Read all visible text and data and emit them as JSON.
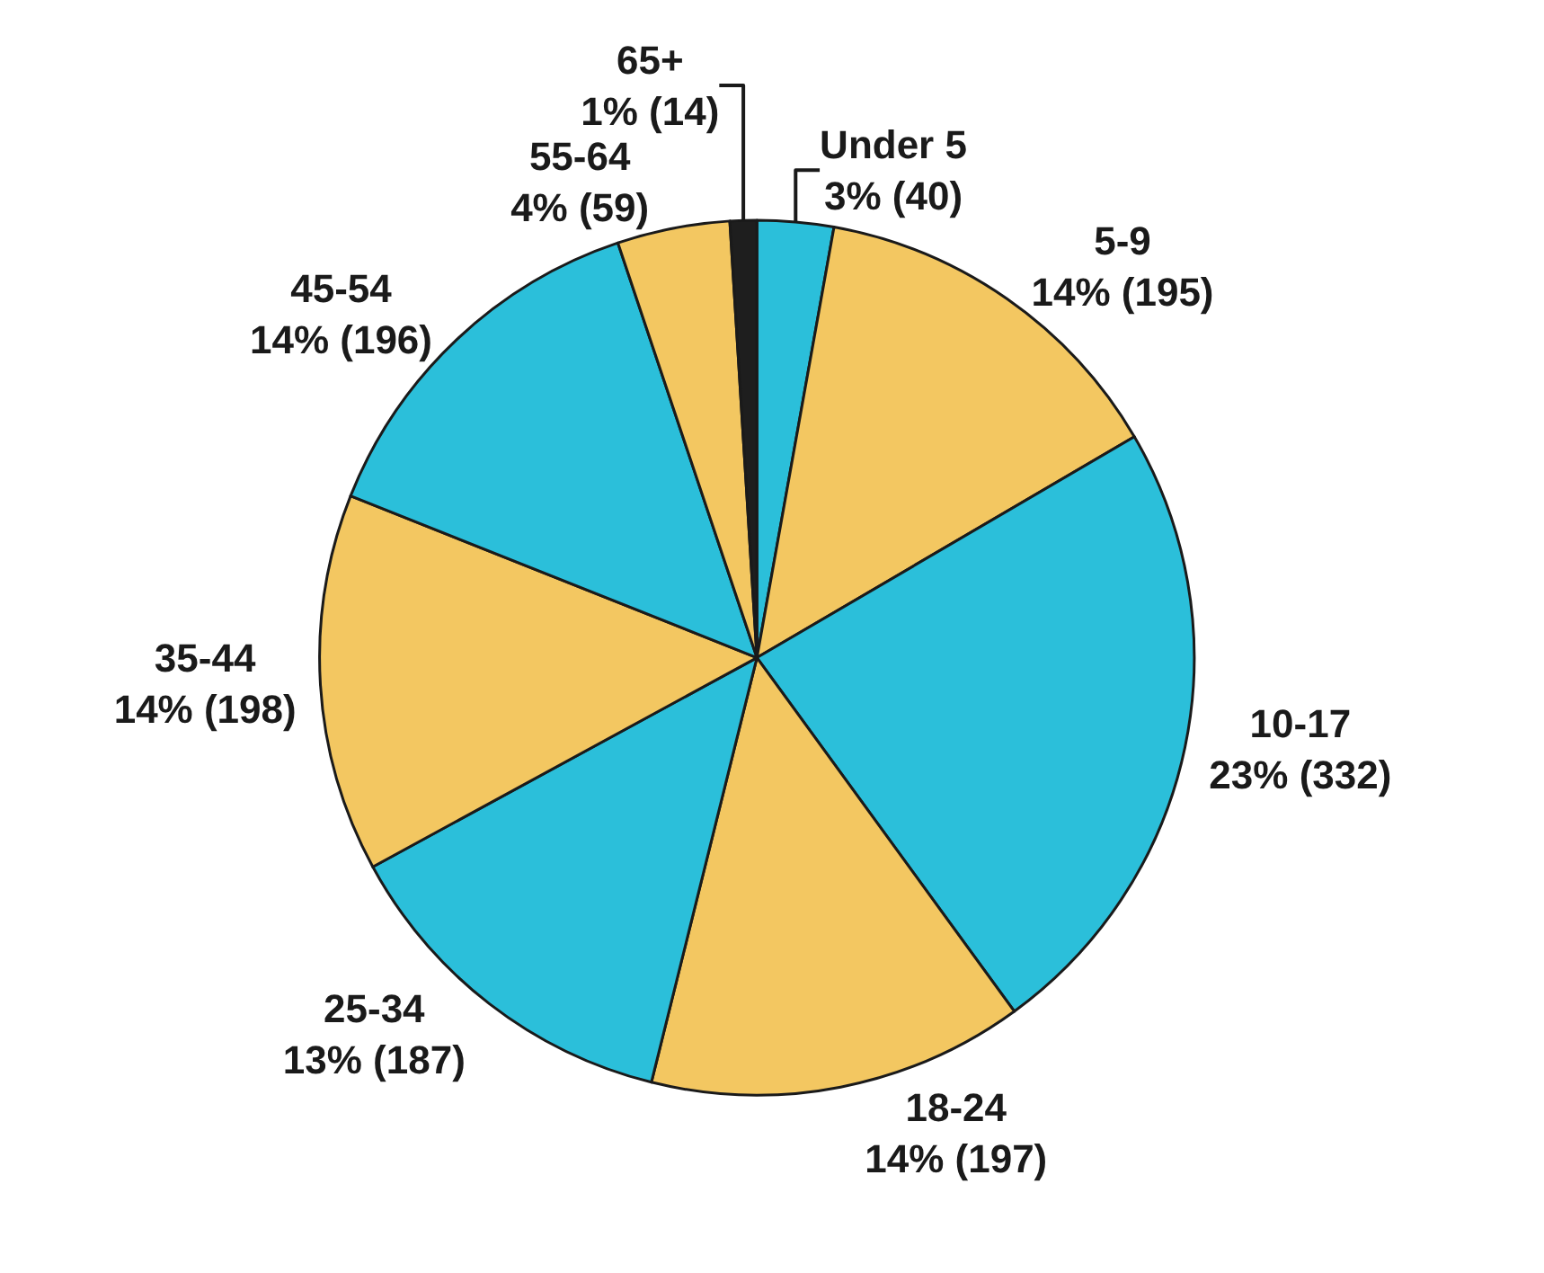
{
  "chart_data": {
    "type": "pie",
    "categories": [
      "Under 5",
      "5-9",
      "10-17",
      "18-24",
      "25-34",
      "35-44",
      "45-54",
      "55-64",
      "65+"
    ],
    "values": [
      40,
      195,
      332,
      197,
      187,
      198,
      196,
      59,
      14
    ],
    "value_labels": [
      "3% (40)",
      "14% (195)",
      "23% (332)",
      "14% (197)",
      "13% (187)",
      "14% (198)",
      "14% (196)",
      "4% (59)",
      "1% (14)"
    ],
    "colors": [
      "#2bbfda",
      "#f3c761",
      "#2bbfda",
      "#f3c761",
      "#2bbfda",
      "#f3c761",
      "#2bbfda",
      "#f3c761",
      "#1e1e1e"
    ],
    "legend": false
  }
}
